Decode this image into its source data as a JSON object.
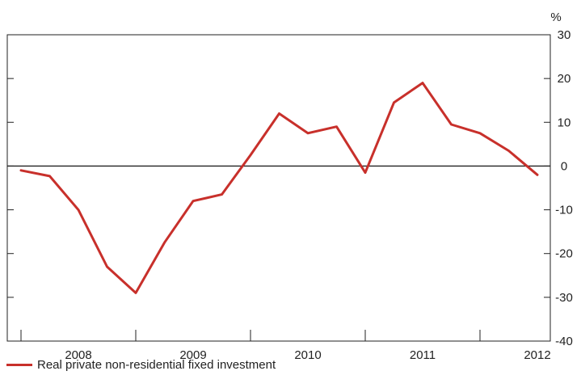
{
  "chart_data": {
    "type": "line",
    "unit_label": "%",
    "x_tick_labels": [
      "2008",
      "2009",
      "2010",
      "2011",
      "2012"
    ],
    "y_ticks": [
      30,
      20,
      10,
      0,
      -10,
      -20,
      -30,
      -40
    ],
    "ylim": [
      -40,
      30
    ],
    "y_axis_position": "right",
    "grid": false,
    "legend_position": "bottom-left",
    "zero_line": true,
    "x": [
      "2007-Q4",
      "2008-Q1",
      "2008-Q2",
      "2008-Q3",
      "2008-Q4",
      "2009-Q1",
      "2009-Q2",
      "2009-Q3",
      "2009-Q4",
      "2010-Q1",
      "2010-Q2",
      "2010-Q3",
      "2010-Q4",
      "2011-Q1",
      "2011-Q2",
      "2011-Q3",
      "2011-Q4",
      "2012-Q1",
      "2012-Q2"
    ],
    "series": [
      {
        "name": "Real private non-residential fixed investment",
        "color": "#c8302b",
        "values": [
          -1,
          -2.3,
          -10,
          -23,
          -29,
          -17.5,
          -8,
          -6.5,
          2.5,
          12,
          7.5,
          9,
          -1.5,
          14.5,
          19,
          9.5,
          7.5,
          3.5,
          -2
        ]
      }
    ]
  }
}
